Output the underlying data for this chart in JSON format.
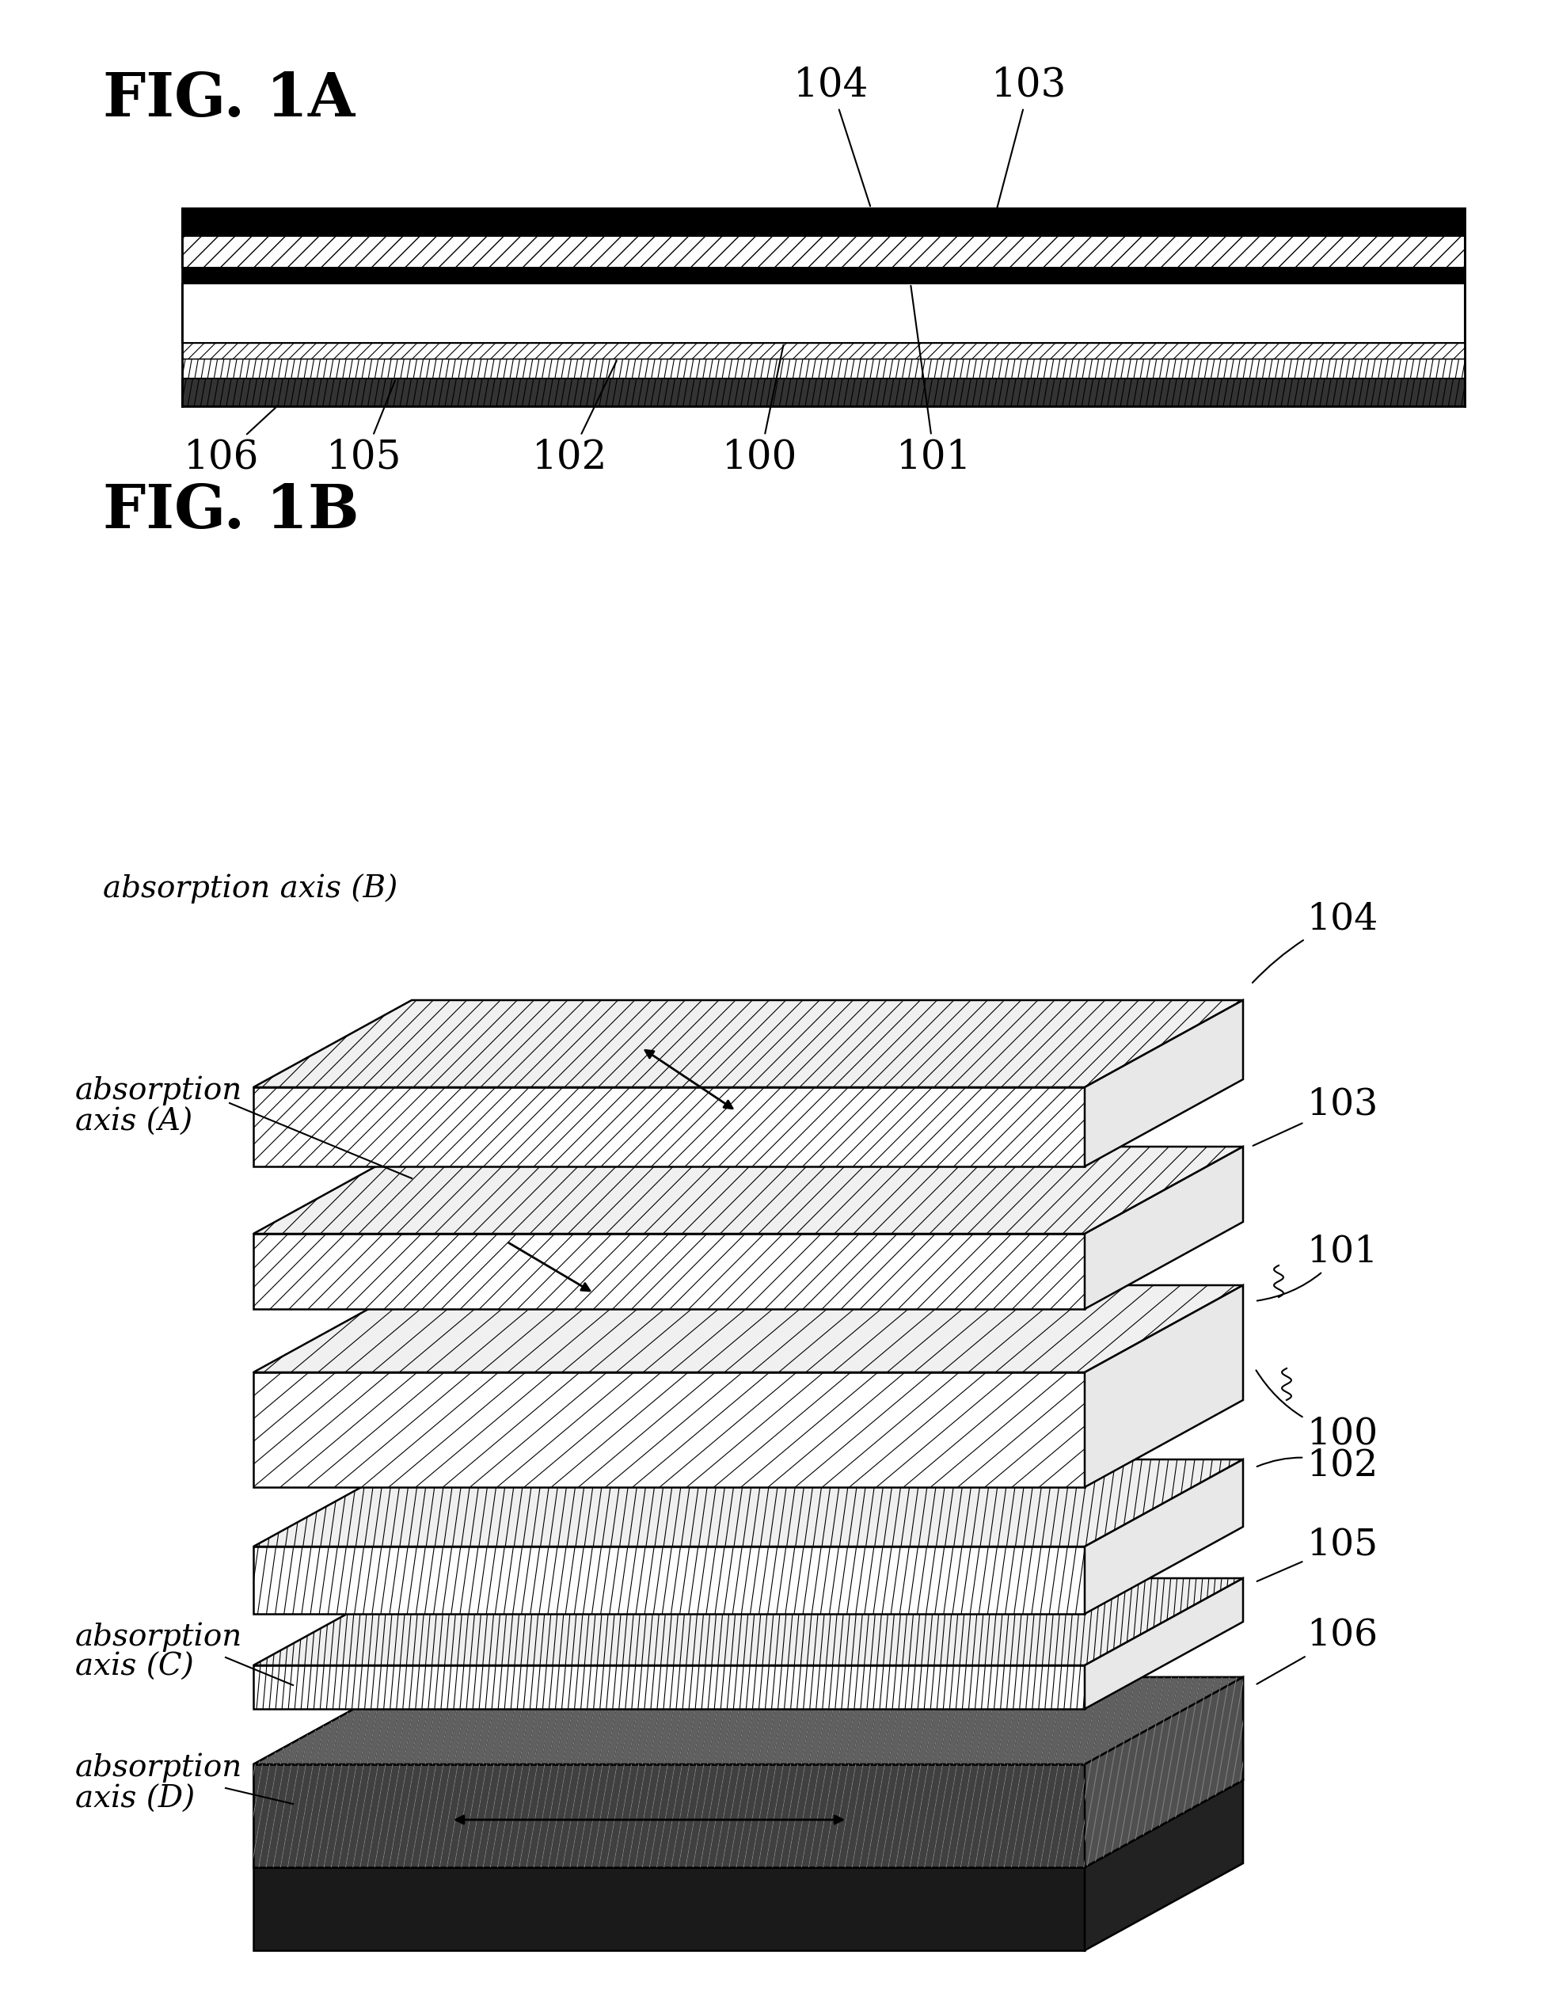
{
  "fig_title_1A": "FIG. 1A",
  "fig_title_1B": "FIG. 1B",
  "bg_color": "#ffffff",
  "layer_labels_top": [
    "104",
    "103"
  ],
  "layer_labels_bottom": [
    "106",
    "105",
    "102",
    "100",
    "101"
  ],
  "label_3d": [
    "104",
    "103",
    "101",
    "100",
    "102",
    "105",
    "106"
  ],
  "absorption_labels": [
    "absorption axis (B)",
    "absorption\naxis (A)",
    "absorption\naxis (C)",
    "absorption\naxis (D)"
  ]
}
